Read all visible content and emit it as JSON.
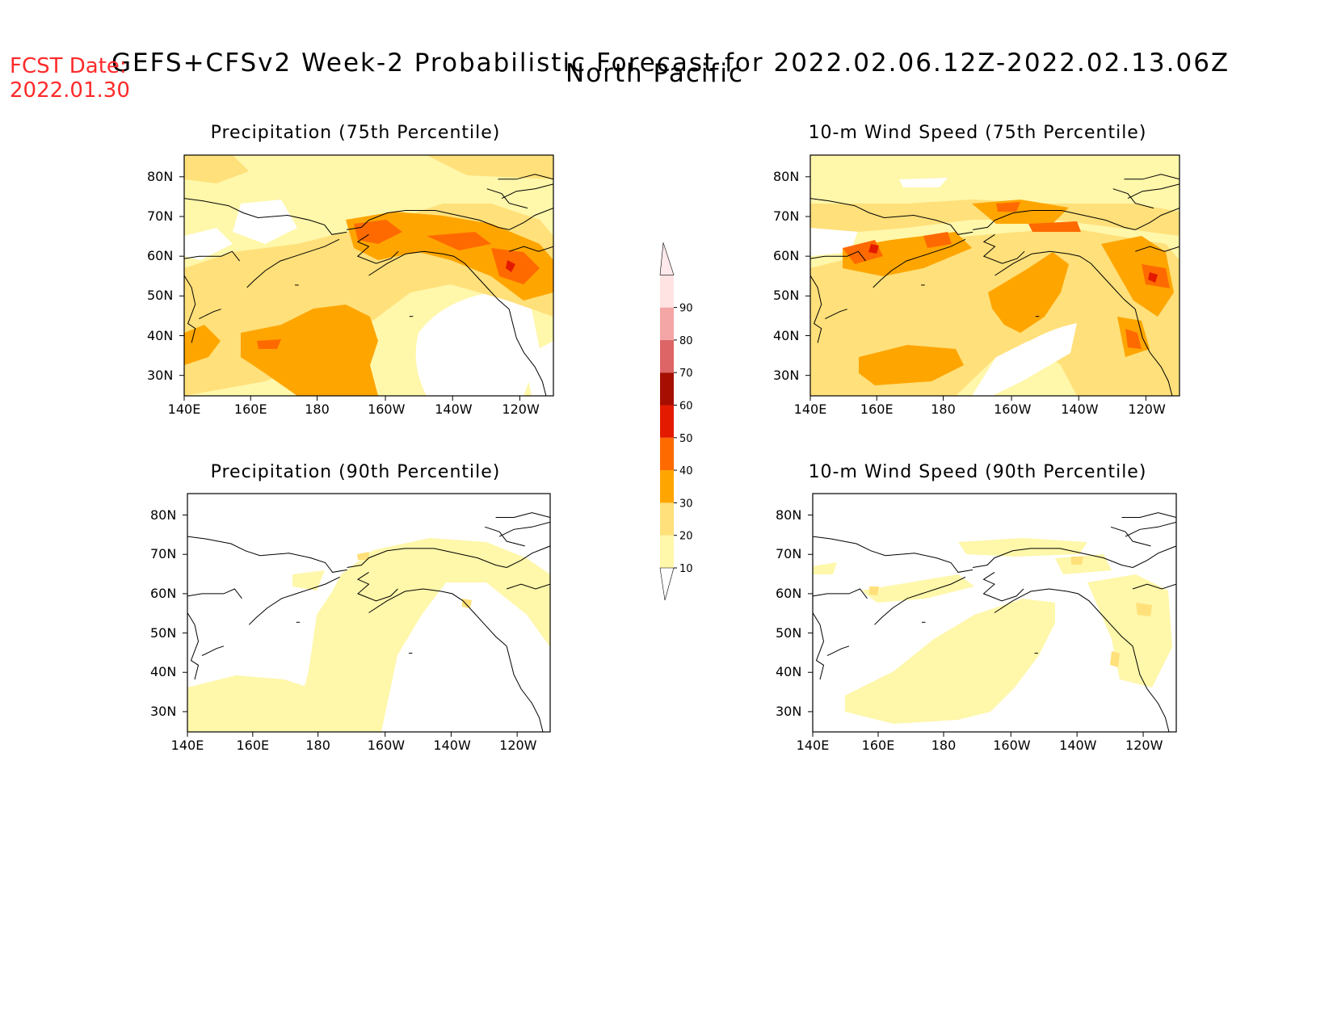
{
  "header": {
    "title_line1": "GEFS+CFSv2 Week-2 Probabilistic Forecast for 2022.02.06.12Z-2022.02.13.06Z",
    "title_line2": "North Pacific",
    "fcst_label": "FCST Date:",
    "fcst_date": "2022.01.30"
  },
  "axes": {
    "lon_ticks": [
      "140E",
      "160E",
      "180",
      "160W",
      "140W",
      "120W"
    ],
    "lat_ticks": [
      "80N",
      "70N",
      "60N",
      "50N",
      "40N",
      "30N"
    ]
  },
  "panels": [
    {
      "id": "precip75",
      "title": "Precipitation (75th Percentile)"
    },
    {
      "id": "wind75",
      "title": "10-m Wind Speed (75th Percentile)"
    },
    {
      "id": "precip90",
      "title": "Precipitation (90th Percentile)"
    },
    {
      "id": "wind90",
      "title": "10-m Wind Speed (90th Percentile)"
    }
  ],
  "colorbar": {
    "labels": [
      "10",
      "20",
      "30",
      "40",
      "50",
      "60",
      "70",
      "80",
      "90"
    ],
    "colors": {
      "c10": "#fff7aa",
      "c20": "#ffe07a",
      "c30": "#ffa500",
      "c40": "#ff6a00",
      "c50": "#e31a00",
      "c60": "#a50e00",
      "c70": "#dd6565",
      "c80": "#f4a5a5",
      "c90": "#ffe3e3"
    }
  }
}
